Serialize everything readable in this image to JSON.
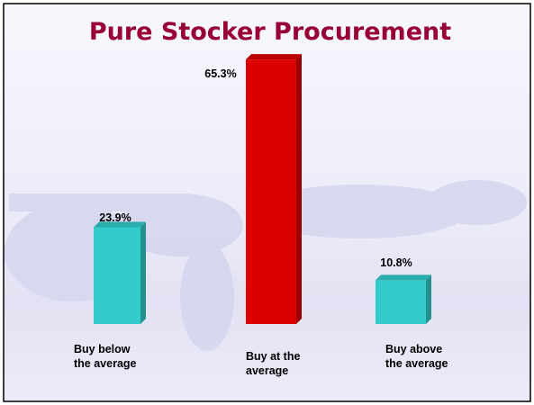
{
  "chart_data": {
    "type": "bar3d",
    "title": "Pure Stocker Procurement",
    "categories": [
      "Buy below\nthe average",
      "Buy at the\naverage",
      "Buy above\nthe average"
    ],
    "values": [
      23.9,
      65.3,
      10.8
    ],
    "value_labels": [
      "23.9%",
      "65.3%",
      "10.8%"
    ],
    "colors": [
      "#33cccc",
      "#dd0000",
      "#33cccc"
    ]
  }
}
